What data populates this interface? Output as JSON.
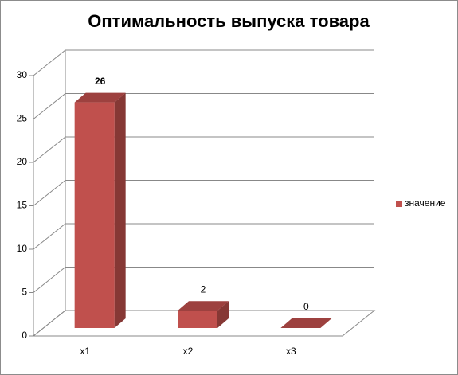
{
  "chart_data": {
    "type": "bar3d",
    "title": "Оптимальность выпуска товара",
    "categories": [
      "x1",
      "x2",
      "x3"
    ],
    "series": [
      {
        "name": "значение",
        "color": "#c0504d",
        "values": [
          26,
          2,
          0
        ]
      }
    ],
    "ylim": [
      0,
      30
    ],
    "yticks": [
      0,
      5,
      10,
      15,
      20,
      25,
      30
    ],
    "grid": true,
    "legend": "right"
  }
}
